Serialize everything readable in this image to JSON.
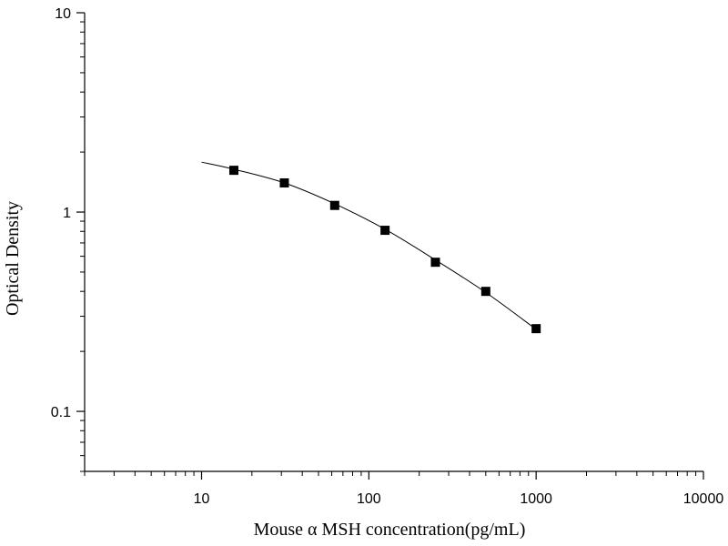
{
  "chart_data": {
    "type": "scatter",
    "title": "",
    "xlabel": "Mouse α  MSH concentration(pg/mL)",
    "ylabel": "Optical Density",
    "xscale": "log",
    "yscale": "log",
    "xlim": [
      2,
      10000
    ],
    "ylim": [
      0.05,
      10
    ],
    "x_ticks": [
      10,
      100,
      1000,
      10000
    ],
    "x_tick_labels": [
      "10",
      "100",
      "1000",
      "10000"
    ],
    "y_ticks": [
      0.1,
      1,
      10
    ],
    "y_tick_labels": [
      "0.1",
      "1",
      "10"
    ],
    "grid": false,
    "legend": "none",
    "series": [
      {
        "marker": "square",
        "color": "#000000",
        "x": [
          15.6,
          31.25,
          62.5,
          125,
          250,
          500,
          1000
        ],
        "y": [
          1.62,
          1.4,
          1.08,
          0.81,
          0.56,
          0.4,
          0.26
        ]
      }
    ],
    "fit_curve": {
      "color": "#000000",
      "x": [
        10,
        15.6,
        31.25,
        62.5,
        125,
        250,
        500,
        1000
      ],
      "y": [
        1.78,
        1.64,
        1.4,
        1.1,
        0.82,
        0.575,
        0.395,
        0.258
      ]
    }
  }
}
